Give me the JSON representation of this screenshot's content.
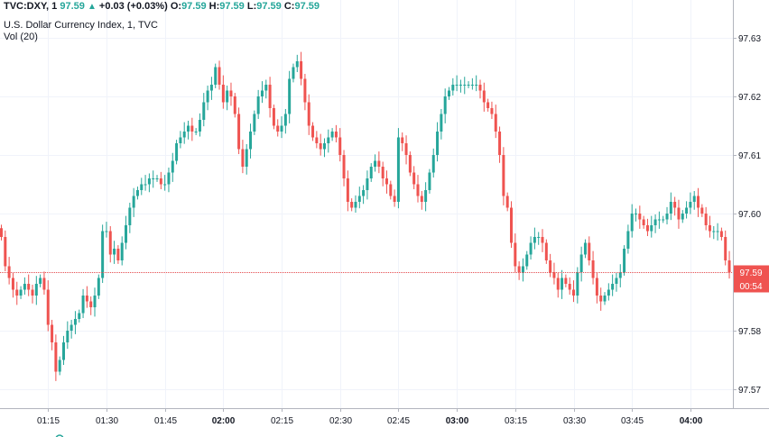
{
  "legend": {
    "symbol": "TVC:DXY, 1",
    "last": "97.59",
    "arrow": "▲",
    "change": "+0.03 (+0.03%)",
    "o_label": "O:",
    "o_value": "97.59",
    "h_label": "H:",
    "h_value": "97.59",
    "l_label": "L:",
    "l_value": "97.59",
    "c_label": "C:",
    "c_value": "97.59",
    "title": "U.S. Dollar Currency Index, 1, TVC",
    "volume": "Vol (20)"
  },
  "price_label": "97.59",
  "countdown_label": "00:54",
  "colors": {
    "up": "#26a69a",
    "down": "#ef5350",
    "price_line": "#ef5350",
    "grid": "#f0f3fa",
    "axis": "#b2b5be"
  },
  "chart_data": {
    "type": "candlestick",
    "title": "U.S. Dollar Currency Index, 1, TVC",
    "ylim": [
      97.566,
      97.636
    ],
    "y_ticks": [
      "97.63",
      "97.62",
      "97.61",
      "97.60",
      "97.59",
      "97.58",
      "97.57"
    ],
    "x_ticks": [
      {
        "label": "01:15",
        "bold": false
      },
      {
        "label": "01:30",
        "bold": false
      },
      {
        "label": "01:45",
        "bold": false
      },
      {
        "label": "02:00",
        "bold": true
      },
      {
        "label": "02:15",
        "bold": false
      },
      {
        "label": "02:30",
        "bold": false
      },
      {
        "label": "02:45",
        "bold": false
      },
      {
        "label": "03:00",
        "bold": true
      },
      {
        "label": "03:15",
        "bold": false
      },
      {
        "label": "03:30",
        "bold": false
      },
      {
        "label": "03:45",
        "bold": false
      },
      {
        "label": "04:00",
        "bold": true
      }
    ],
    "x_start": "01:03",
    "last_price": 97.59,
    "grid": true,
    "closes": [
      97.596,
      97.591,
      97.589,
      97.587,
      97.586,
      97.587,
      97.588,
      97.587,
      97.586,
      97.588,
      97.589,
      97.587,
      97.581,
      97.578,
      97.573,
      97.575,
      97.578,
      97.58,
      97.581,
      97.582,
      97.583,
      97.586,
      97.585,
      97.584,
      97.586,
      97.589,
      97.597,
      97.597,
      97.593,
      97.594,
      97.592,
      97.595,
      97.598,
      97.601,
      97.603,
      97.604,
      97.605,
      97.605,
      97.606,
      97.606,
      97.606,
      97.605,
      97.605,
      97.607,
      97.609,
      97.612,
      97.613,
      97.614,
      97.615,
      97.614,
      97.614,
      97.616,
      97.619,
      97.621,
      97.622,
      97.625,
      97.622,
      97.619,
      97.621,
      97.62,
      97.617,
      97.611,
      97.608,
      97.611,
      97.614,
      97.617,
      97.62,
      97.621,
      97.622,
      97.618,
      97.615,
      97.614,
      97.615,
      97.617,
      97.623,
      97.625,
      97.626,
      97.623,
      97.619,
      97.615,
      97.613,
      97.612,
      97.611,
      97.612,
      97.613,
      97.614,
      97.613,
      97.61,
      97.606,
      97.602,
      97.601,
      97.602,
      97.603,
      97.604,
      97.606,
      97.608,
      97.609,
      97.608,
      97.606,
      97.605,
      97.603,
      97.602,
      97.613,
      97.612,
      97.61,
      97.607,
      97.605,
      97.603,
      97.602,
      97.604,
      97.607,
      97.61,
      97.614,
      97.617,
      97.62,
      97.621,
      97.622,
      97.622,
      97.622,
      97.622,
      97.622,
      97.622,
      97.622,
      97.621,
      97.619,
      97.618,
      97.617,
      97.614,
      97.61,
      97.603,
      97.601,
      97.595,
      97.591,
      97.59,
      97.591,
      97.593,
      97.595,
      97.596,
      97.596,
      97.595,
      97.592,
      97.59,
      97.589,
      97.587,
      97.589,
      97.588,
      97.587,
      97.586,
      97.59,
      97.593,
      97.595,
      97.592,
      97.589,
      97.586,
      97.585,
      97.586,
      97.587,
      97.588,
      97.589,
      97.59,
      97.594,
      97.597,
      97.6,
      97.6,
      97.599,
      97.598,
      97.597,
      97.598,
      97.599,
      97.599,
      97.599,
      97.6,
      97.602,
      97.601,
      97.599,
      97.6,
      97.601,
      97.602,
      97.603,
      97.601,
      97.6,
      97.598,
      97.597,
      97.597,
      97.597,
      97.596,
      97.592,
      97.59
    ]
  }
}
